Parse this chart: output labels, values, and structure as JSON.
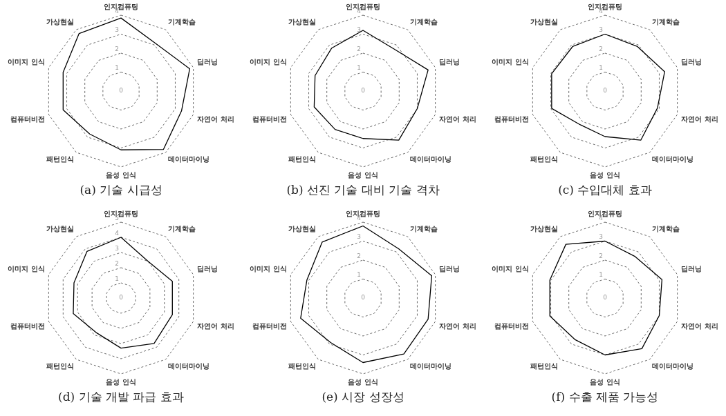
{
  "chart_data": [
    {
      "type": "radar",
      "title": "(a) 기술 시급성",
      "categories": [
        "인지컴퓨팅",
        "기계학습",
        "딥러닝",
        "자연어 처리",
        "데이터마이닝",
        "음성 인식",
        "패턴인식",
        "컴퓨터비전",
        "이미지 인식",
        "가상현실"
      ],
      "ylim": [
        0,
        4
      ],
      "yticks": [
        0,
        1,
        2,
        3,
        4
      ],
      "grid": true,
      "marker": "none",
      "series": [
        {
          "color": "#000000",
          "values": [
            3.85,
            3.1,
            3.8,
            3.35,
            3.8,
            3.1,
            2.8,
            3.2,
            3.2,
            3.75
          ]
        }
      ]
    },
    {
      "type": "radar",
      "title": "(b) 선진 기술 대비 기술 격차",
      "categories": [
        "인지컴퓨팅",
        "기계학습",
        "딥러닝",
        "자연어 처리",
        "데이터마이닝",
        "음성 인식",
        "패턴인식",
        "컴퓨터비전",
        "이미지 인식",
        "가상현실"
      ],
      "ylim": [
        0,
        4
      ],
      "yticks": [
        0,
        1,
        2,
        3,
        4
      ],
      "grid": true,
      "marker": "none",
      "series": [
        {
          "color": "#000000",
          "values": [
            3.2,
            2.75,
            3.6,
            3.0,
            3.2,
            2.5,
            2.5,
            2.7,
            2.65,
            2.8
          ]
        }
      ]
    },
    {
      "type": "radar",
      "title": "(c) 수입대체 효과",
      "categories": [
        "인지컴퓨팅",
        "기계학습",
        "딥러닝",
        "자연어 처리",
        "데이터마이닝",
        "음성 인식",
        "패턴인식",
        "컴퓨터비전",
        "이미지 인식",
        "가상현실"
      ],
      "ylim": [
        0,
        4
      ],
      "yticks": [
        0,
        1,
        2,
        3,
        4
      ],
      "grid": true,
      "marker": "none",
      "series": [
        {
          "color": "#000000",
          "values": [
            3.0,
            2.9,
            3.3,
            2.9,
            3.2,
            2.4,
            2.2,
            2.95,
            2.95,
            2.9
          ]
        }
      ]
    },
    {
      "type": "radar",
      "title": "(d) 기술 개발 파급 효과",
      "categories": [
        "인지컴퓨팅",
        "기계학습",
        "딥러닝",
        "자연어 처리",
        "데이터마이닝",
        "음성 인식",
        "패턴인식",
        "컴퓨터비전",
        "이미지 인식",
        "가상현실"
      ],
      "ylim": [
        0,
        5
      ],
      "yticks": [
        0,
        1,
        2,
        3,
        4,
        5
      ],
      "grid": true,
      "marker": "none",
      "series": [
        {
          "color": "#000000",
          "values": [
            4.0,
            3.0,
            3.55,
            3.55,
            3.7,
            3.3,
            2.8,
            3.3,
            3.25,
            3.8
          ]
        }
      ]
    },
    {
      "type": "radar",
      "title": "(e) 시장 성장성",
      "categories": [
        "인지컴퓨팅",
        "기계학습",
        "딥러닝",
        "자연어 처리",
        "데이터마이닝",
        "음성 인식",
        "패턴인식",
        "컴퓨터비전",
        "이미지 인식",
        "가상현실"
      ],
      "ylim": [
        0,
        4
      ],
      "yticks": [
        0,
        1,
        2,
        3,
        4
      ],
      "grid": true,
      "marker": "none",
      "series": [
        {
          "color": "#000000",
          "values": [
            3.8,
            3.2,
            3.8,
            3.6,
            3.65,
            3.4,
            2.9,
            3.45,
            3.1,
            3.65
          ]
        }
      ]
    },
    {
      "type": "radar",
      "title": "(f) 수출 제품 가능성",
      "categories": [
        "인지컴퓨팅",
        "기계학습",
        "딥러닝",
        "자연어 처리",
        "데이터마이닝",
        "음성 인식",
        "패턴인식",
        "컴퓨터비전",
        "이미지 인식",
        "가상현실"
      ],
      "ylim": [
        0,
        4
      ],
      "yticks": [
        0,
        1,
        2,
        3,
        4
      ],
      "grid": true,
      "marker": "none",
      "series": [
        {
          "color": "#000000",
          "values": [
            3.0,
            2.7,
            3.15,
            3.0,
            3.3,
            3.0,
            2.7,
            3.05,
            3.05,
            3.5
          ]
        }
      ]
    }
  ]
}
